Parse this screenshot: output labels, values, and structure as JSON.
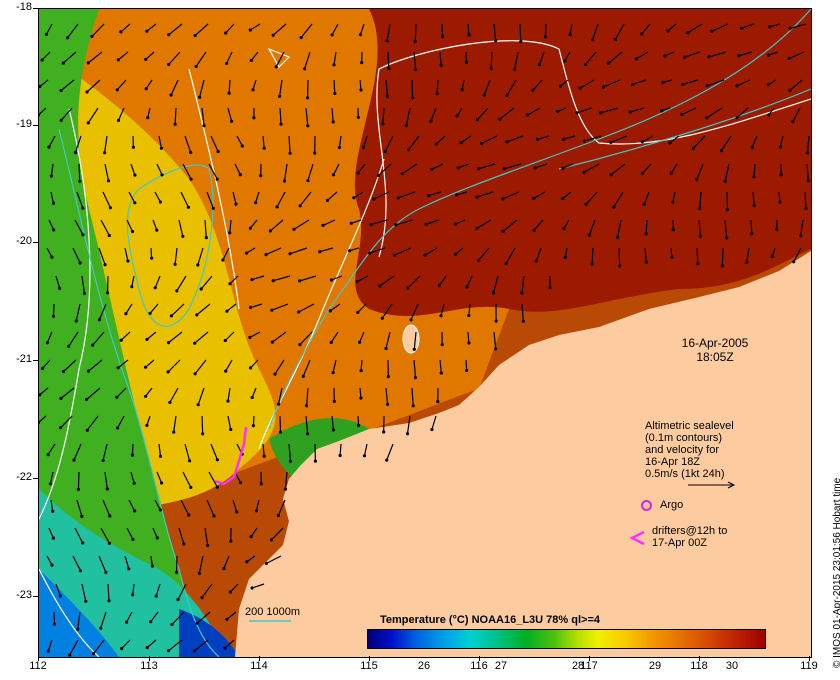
{
  "map": {
    "x_tick_labels": [
      "112",
      "113",
      "114",
      "115",
      "116",
      "117",
      "118",
      "119"
    ],
    "y_tick_labels": [
      "-18",
      "-19",
      "-20",
      "-21",
      "-22",
      "-23"
    ],
    "date": "16-Apr-2005",
    "time": "18:05Z",
    "legend_lines": [
      "Altimetric sealevel",
      "(0.1m contours)",
      "and velocity for",
      "16-Apr 18Z",
      "0.5m/s (1kt 24h)"
    ],
    "argo_label": "Argo",
    "drifter_label_1": "drifters@12h to",
    "drifter_label_2": "17-Apr 00Z",
    "bathymetry_label": "200  1000m",
    "colorbar_title": "Temperature (°C) NOAA16_L3U 78% ql>=4",
    "colorbar_labels": [
      "26",
      "27",
      "28",
      "29",
      "30"
    ],
    "credit": "© IMOS 01-Apr-2015 23:01:56 Hobart time",
    "colors": {
      "land": "#fccca0",
      "contour": "#ffffff",
      "bathymetry": "#40c8c8",
      "argo": "#e020e0",
      "drifter": "#ff30ff"
    }
  }
}
